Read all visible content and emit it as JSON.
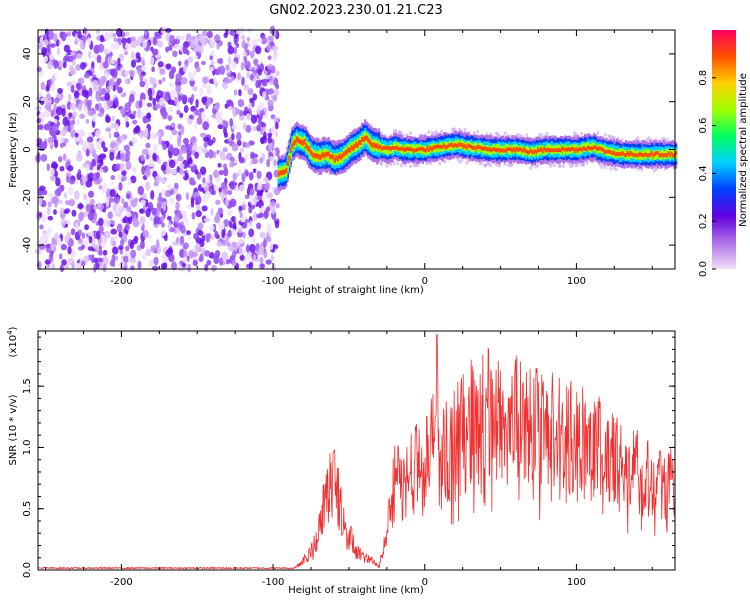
{
  "figure": {
    "title": "GN02.2023.230.01.21.C23"
  },
  "chart_data": [
    {
      "type": "heatmap",
      "xlabel": "Height of straight line (km)",
      "ylabel": "Frequency (Hz)",
      "xlim": [
        -255,
        165
      ],
      "ylim": [
        -50,
        50
      ],
      "xticks": [
        -200,
        -100,
        0,
        100
      ],
      "yticks": [
        -40,
        -20,
        0,
        20,
        40
      ],
      "colorbar": {
        "label": "Normalized spectral amplitude",
        "range": [
          0,
          1
        ],
        "ticks": [
          "0.0",
          "0.2",
          "0.4",
          "0.6",
          "0.8"
        ],
        "colormap": [
          "#f0e0f8",
          "#b070e8",
          "#6000e0",
          "#0040ff",
          "#00d0ff",
          "#00ff60",
          "#a0ff00",
          "#ffd000",
          "#ff5000",
          "#ff0060"
        ]
      },
      "features": [
        {
          "kind": "noise",
          "x_range": [
            -255,
            -97
          ],
          "freq_range": [
            -50,
            50
          ],
          "amplitude": 0.05
        },
        {
          "kind": "ridge",
          "points": [
            [
              -97,
              -10
            ],
            [
              -92,
              -9
            ],
            [
              -88,
              2
            ],
            [
              -85,
              4
            ],
            [
              -80,
              3
            ],
            [
              -75,
              -2
            ],
            [
              -70,
              -3
            ],
            [
              -65,
              -2
            ],
            [
              -60,
              -4
            ],
            [
              -55,
              -3
            ],
            [
              -50,
              0
            ],
            [
              -45,
              2
            ],
            [
              -40,
              5
            ],
            [
              -35,
              2
            ],
            [
              -30,
              1
            ],
            [
              -25,
              0
            ],
            [
              -20,
              1
            ],
            [
              -15,
              0
            ],
            [
              -10,
              0
            ],
            [
              0,
              0
            ],
            [
              10,
              1
            ],
            [
              20,
              2
            ],
            [
              30,
              1
            ],
            [
              40,
              0
            ],
            [
              50,
              0
            ],
            [
              60,
              0
            ],
            [
              70,
              -1
            ],
            [
              80,
              0
            ],
            [
              90,
              0
            ],
            [
              100,
              0
            ],
            [
              110,
              1
            ],
            [
              120,
              -1
            ],
            [
              130,
              -2
            ],
            [
              140,
              -2
            ],
            [
              150,
              -2
            ],
            [
              165,
              -2
            ]
          ]
        }
      ]
    },
    {
      "type": "line",
      "xlabel": "Height of straight line (km)",
      "ylabel": "SNR (10 * v/v)",
      "y_multiplier": "(x10",
      "y_multiplier_exp": "4",
      "xlim": [
        -255,
        165
      ],
      "ylim": [
        0,
        1.95
      ],
      "xticks": [
        -200,
        -100,
        0,
        100
      ],
      "yticks": [
        "0.0",
        "0.5",
        "1.0",
        "1.5"
      ],
      "ytick_values": [
        0,
        0.5,
        1.0,
        1.5
      ],
      "color": "#f03030",
      "envelope": {
        "x": [
          -255,
          -90,
          -85,
          -75,
          -70,
          -65,
          -60,
          -58,
          -55,
          -50,
          -45,
          -40,
          -35,
          -30,
          -25,
          -22,
          -20,
          -18,
          -15,
          -10,
          -5,
          0,
          5,
          8,
          10,
          12,
          15,
          20,
          25,
          30,
          35,
          40,
          45,
          50,
          55,
          60,
          65,
          70,
          75,
          80,
          85,
          90,
          95,
          100,
          105,
          110,
          115,
          120,
          130,
          140,
          150,
          160,
          165
        ],
        "y": [
          0.01,
          0.01,
          0.02,
          0.15,
          0.3,
          0.6,
          0.8,
          0.75,
          0.5,
          0.3,
          0.15,
          0.1,
          0.08,
          0.05,
          0.3,
          0.55,
          0.7,
          0.75,
          0.65,
          0.8,
          0.85,
          0.9,
          1.0,
          1.5,
          0.85,
          0.95,
          0.95,
          1.05,
          1.1,
          1.2,
          1.25,
          1.25,
          1.25,
          1.2,
          1.2,
          1.25,
          1.15,
          1.2,
          1.15,
          1.1,
          1.15,
          1.1,
          1.1,
          1.05,
          1.05,
          1.0,
          1.0,
          0.9,
          0.85,
          0.8,
          0.75,
          0.72,
          0.7
        ]
      },
      "spikes": [
        {
          "x": 8,
          "y": 1.92
        },
        {
          "x": -60,
          "y": 0.97
        }
      ]
    }
  ]
}
